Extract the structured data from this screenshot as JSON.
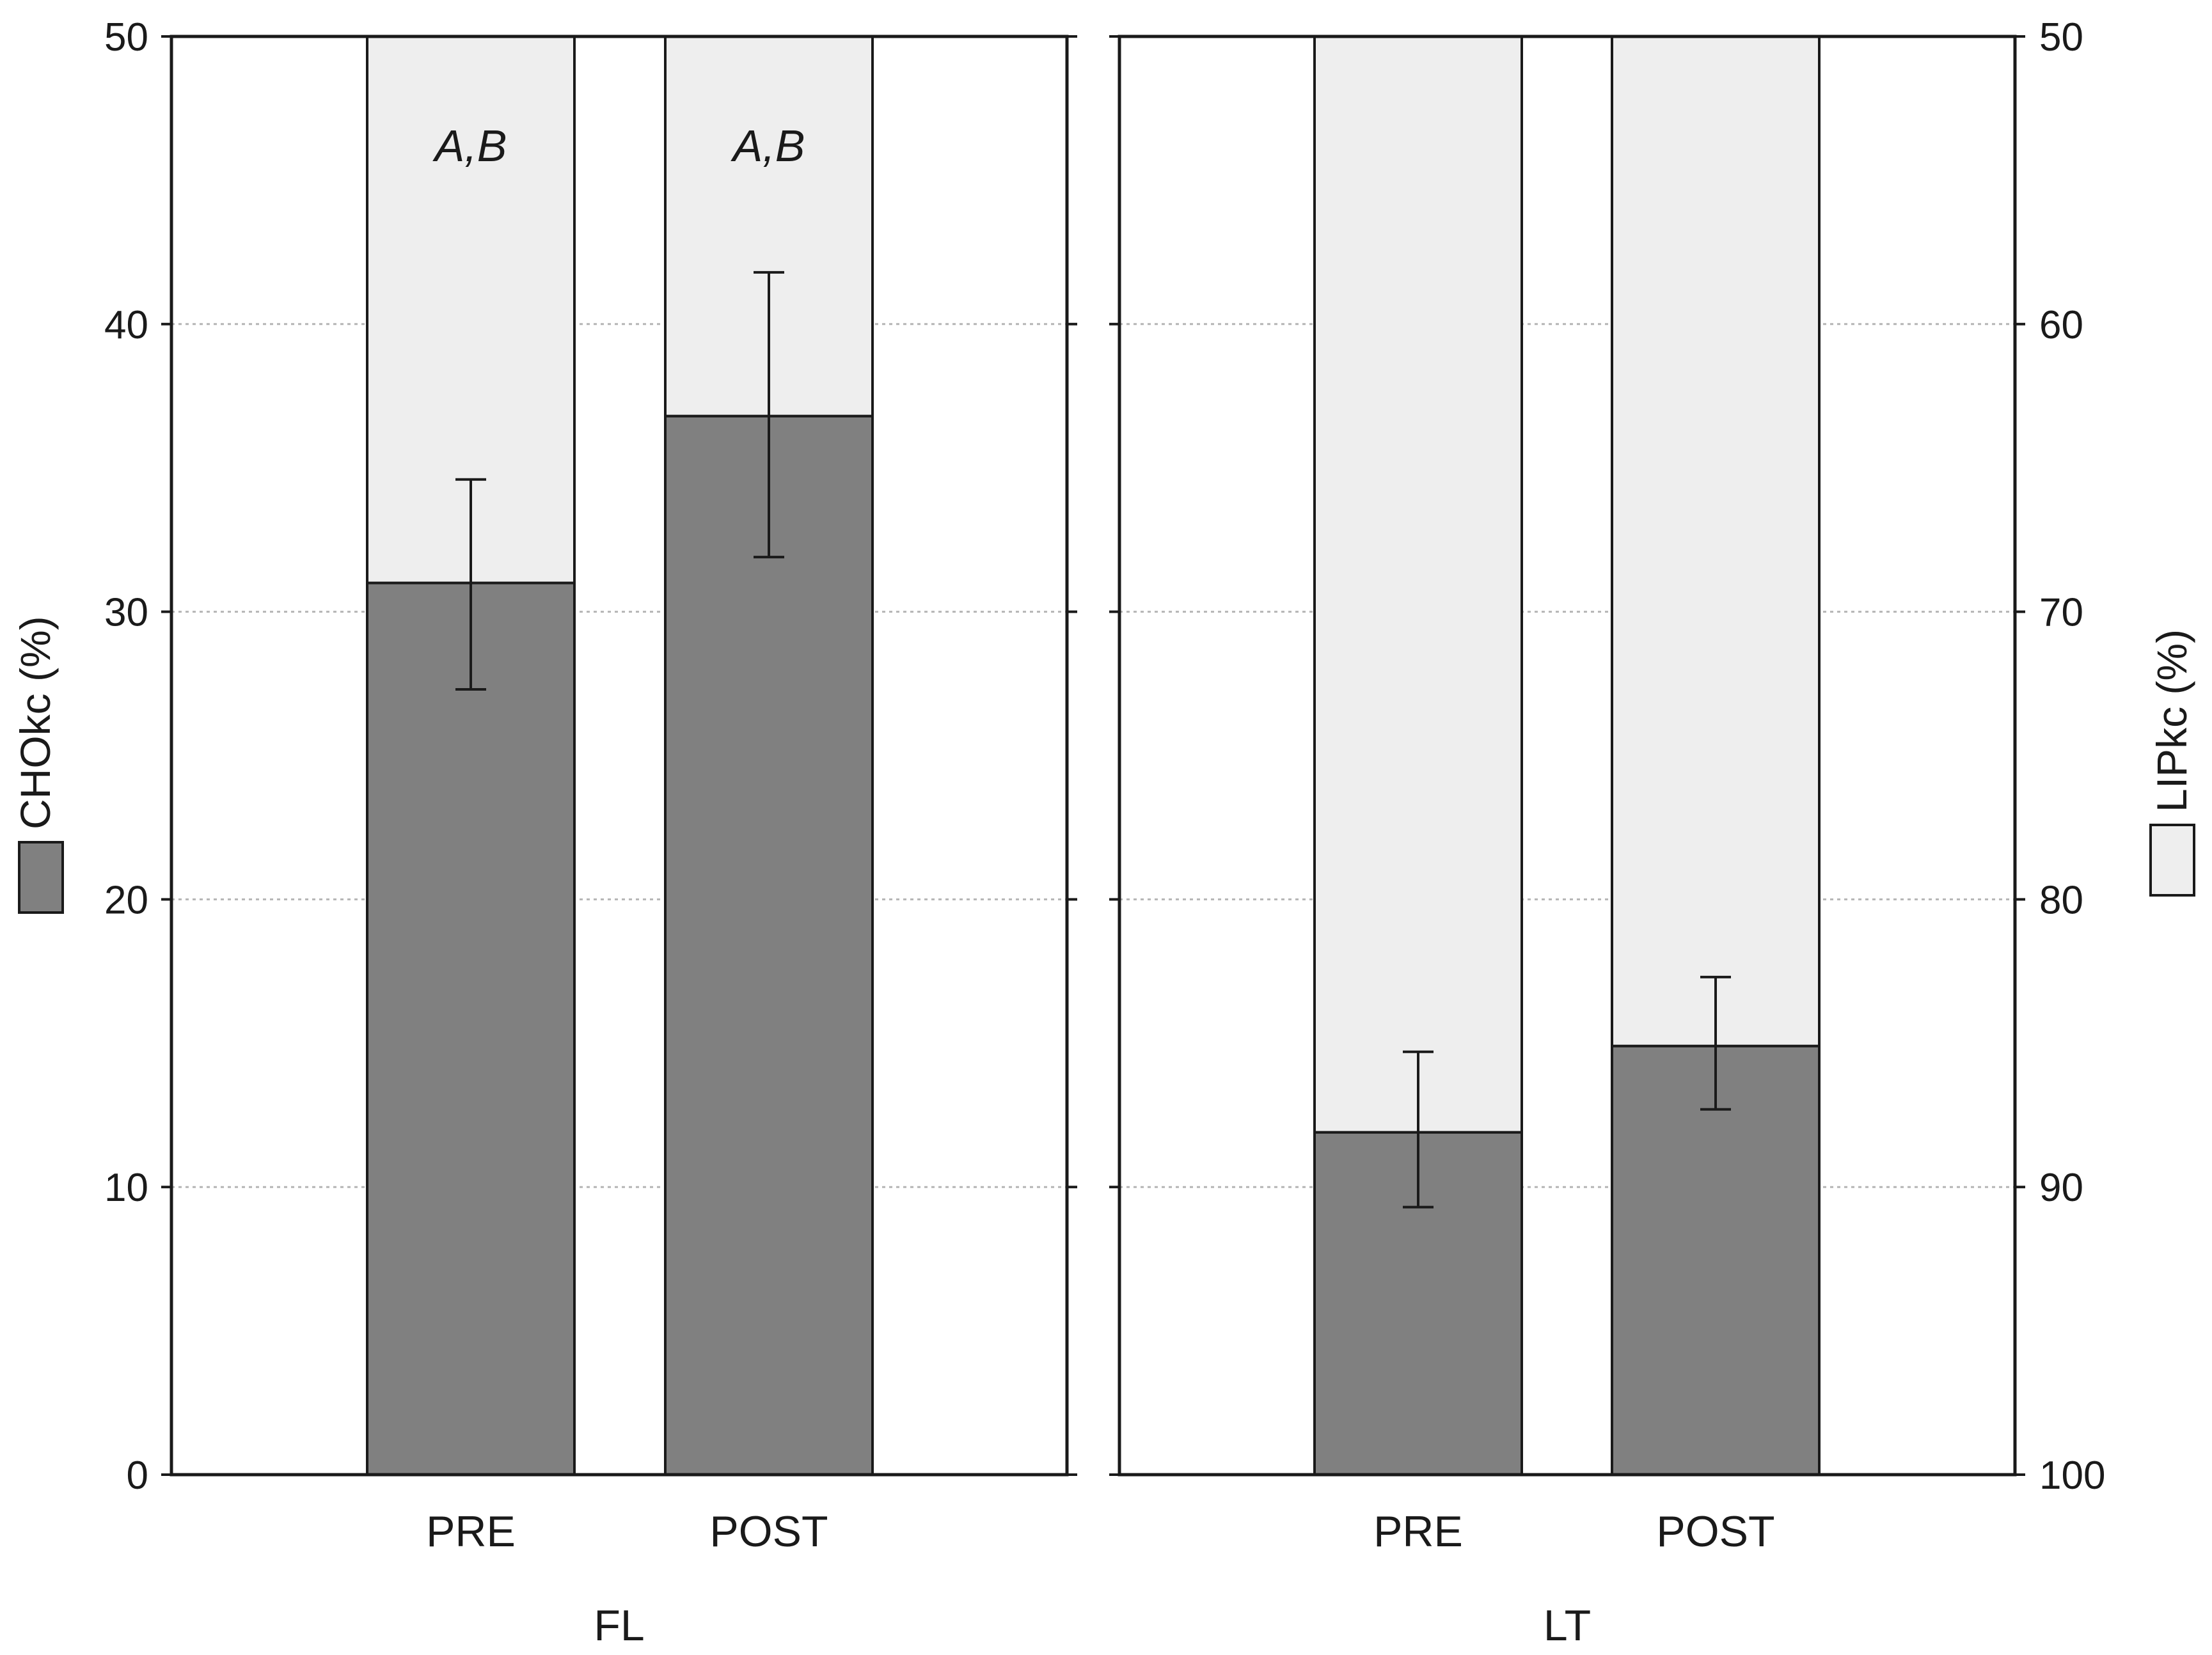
{
  "chart_data": {
    "type": "bar",
    "stacked": true,
    "groups": [
      "FL",
      "LT"
    ],
    "categories": [
      "PRE",
      "POST"
    ],
    "y_left": {
      "label": "CHOkc (%)",
      "ylim": [
        0,
        50
      ],
      "ticks": [
        "0",
        "10",
        "20",
        "30",
        "40",
        "50"
      ]
    },
    "y_right": {
      "label": "LIPkc (%)",
      "ylim": [
        50,
        100
      ],
      "ticks": [
        "50",
        "60",
        "70",
        "80",
        "90",
        "100"
      ],
      "inverted": true
    },
    "series": [
      {
        "name": "CHOkc (%)",
        "color": "#808080",
        "values": {
          "FL": [
            31.0,
            36.8
          ],
          "LT": [
            11.9,
            14.9
          ]
        },
        "error_low": {
          "FL": [
            27.3,
            31.9
          ],
          "LT": [
            9.3,
            12.7
          ]
        },
        "error_high": {
          "FL": [
            34.6,
            41.8
          ],
          "LT": [
            14.7,
            17.3
          ]
        }
      },
      {
        "name": "LIPkc (%)",
        "color": "#eeeeee",
        "values": {
          "FL": [
            69.0,
            63.2
          ],
          "LT": [
            88.1,
            85.1
          ]
        }
      }
    ],
    "annotations": {
      "FL": [
        "A,B",
        "A,B"
      ],
      "LT": [
        "",
        ""
      ]
    },
    "grid": true,
    "legend": "swatches beside axis labels"
  }
}
